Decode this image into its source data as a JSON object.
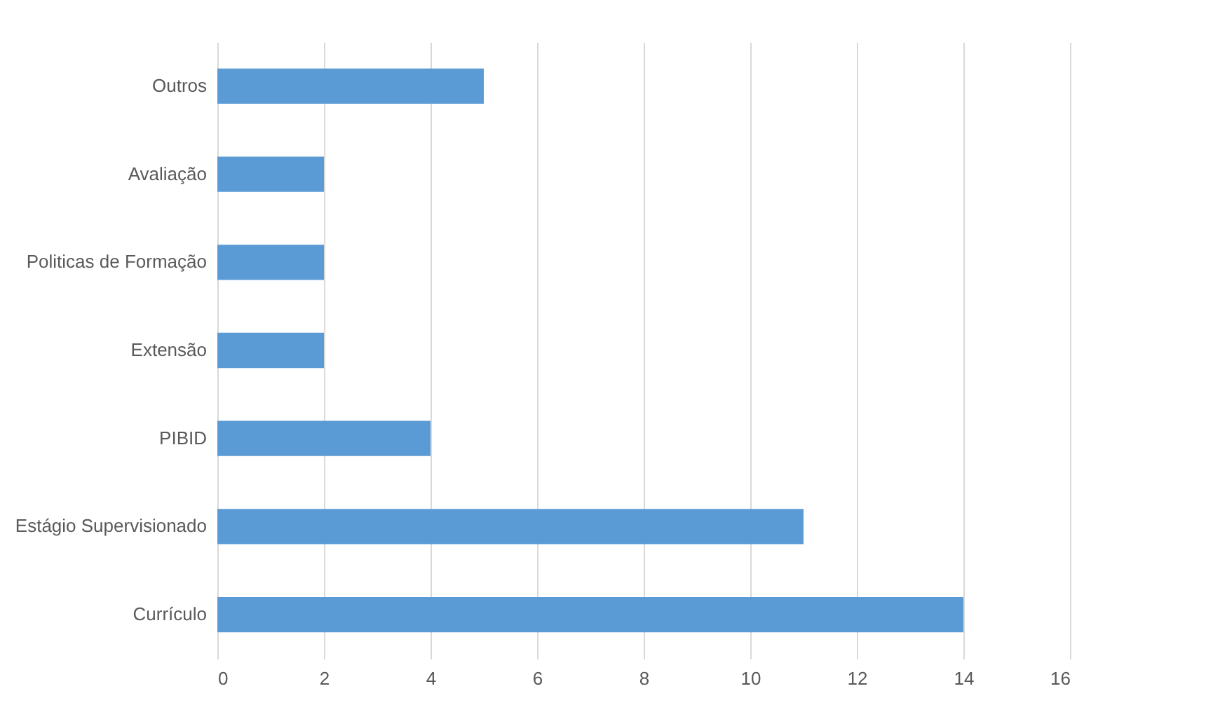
{
  "chart_data": {
    "type": "bar",
    "orientation": "horizontal",
    "categories": [
      "Outros",
      "Avaliação",
      "Politicas de Formação",
      "Extensão",
      "PIBID",
      "Estágio Supervisionado",
      "Currículo"
    ],
    "values": [
      5,
      2,
      2,
      2,
      4,
      11,
      14
    ],
    "color": "#5b9bd5",
    "xlim": [
      0,
      16
    ],
    "xticks": [
      0,
      2,
      4,
      6,
      8,
      10,
      12,
      14,
      16
    ],
    "grid": "x"
  }
}
